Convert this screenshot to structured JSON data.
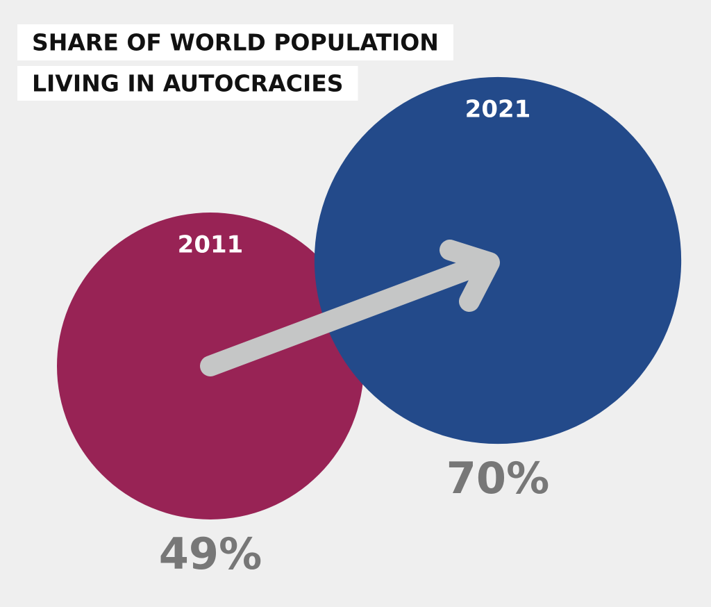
{
  "chart_data": {
    "type": "bubble",
    "title": [
      "SHARE OF WORLD POPULATION",
      "LIVING IN AUTOCRACIES"
    ],
    "categories": [
      "2011",
      "2021"
    ],
    "values": [
      49,
      70
    ],
    "value_labels": [
      "49%",
      "70%"
    ],
    "colors": [
      "#982355",
      "#234a8a"
    ]
  }
}
